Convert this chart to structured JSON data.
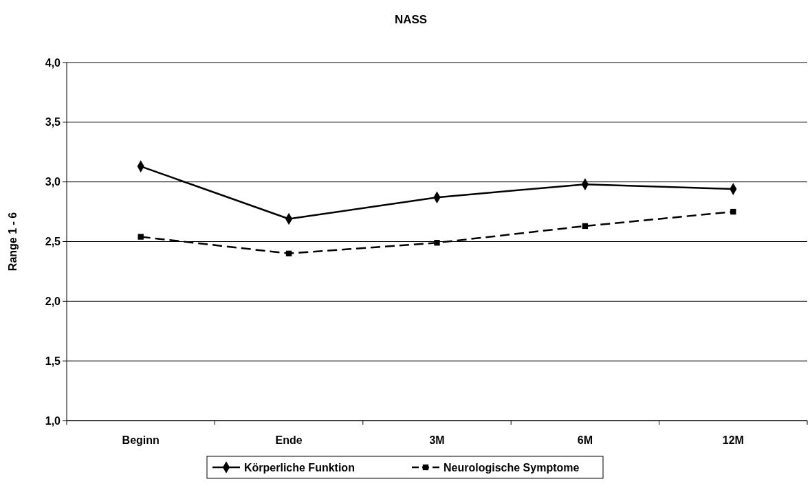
{
  "chart_data": {
    "type": "line",
    "title": "NASS",
    "ylabel": "Range 1 - 6",
    "categories": [
      "Beginn",
      "Ende",
      "3M",
      "6M",
      "12M"
    ],
    "series": [
      {
        "name": "Körperliche Funktion",
        "color": "#000000",
        "marker": "diamond",
        "line_style": "solid",
        "values": [
          3.13,
          2.69,
          2.87,
          2.98,
          2.94
        ]
      },
      {
        "name": "Neurologische Symptome",
        "color": "#000000",
        "marker": "square",
        "line_style": "dashed",
        "values": [
          2.54,
          2.4,
          2.49,
          2.63,
          2.75
        ]
      }
    ],
    "ylim": [
      1,
      4
    ],
    "yticks": [
      {
        "value": 1,
        "label": "1,0"
      },
      {
        "value": 1.5,
        "label": "1,5"
      },
      {
        "value": 2,
        "label": "2,0"
      },
      {
        "value": 2.5,
        "label": "2,5"
      },
      {
        "value": 3,
        "label": "3,0"
      },
      {
        "value": 3.5,
        "label": "3,5"
      },
      {
        "value": 4,
        "label": "4,0"
      }
    ],
    "grid": "y",
    "legend": "bottom"
  }
}
